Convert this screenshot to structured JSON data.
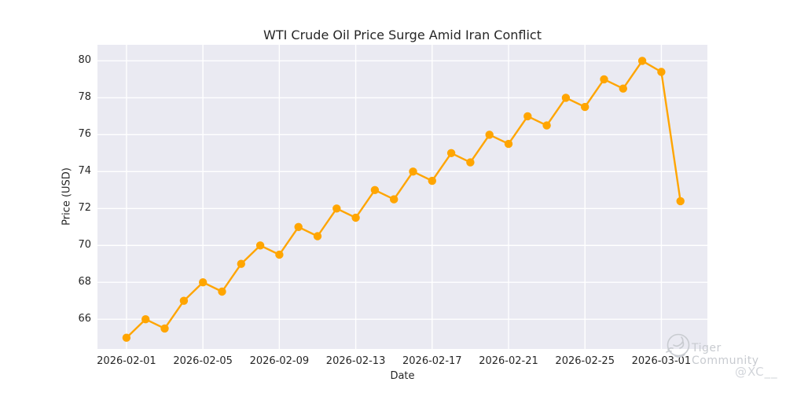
{
  "chart_data": {
    "type": "line",
    "title": "WTI Crude Oil Price Surge Amid Iran Conflict",
    "xlabel": "Date",
    "ylabel": "Price (USD)",
    "x": [
      "2026-02-01",
      "2026-02-02",
      "2026-02-03",
      "2026-02-04",
      "2026-02-05",
      "2026-02-06",
      "2026-02-07",
      "2026-02-08",
      "2026-02-09",
      "2026-02-10",
      "2026-02-11",
      "2026-02-12",
      "2026-02-13",
      "2026-02-14",
      "2026-02-15",
      "2026-02-16",
      "2026-02-17",
      "2026-02-18",
      "2026-02-19",
      "2026-02-20",
      "2026-02-21",
      "2026-02-22",
      "2026-02-23",
      "2026-02-24",
      "2026-02-25",
      "2026-02-26",
      "2026-02-27",
      "2026-02-28",
      "2026-03-01",
      "2026-03-02"
    ],
    "values": [
      65.0,
      66.0,
      65.5,
      67.0,
      68.0,
      67.5,
      69.0,
      70.0,
      69.5,
      71.0,
      70.5,
      72.0,
      71.5,
      73.0,
      72.5,
      74.0,
      73.5,
      75.0,
      74.5,
      76.0,
      75.5,
      77.0,
      76.5,
      78.0,
      77.5,
      79.0,
      78.5,
      80.0,
      79.4,
      72.4
    ],
    "x_tick_labels": [
      "2026-02-01",
      "2026-02-05",
      "2026-02-09",
      "2026-02-13",
      "2026-02-17",
      "2026-02-21",
      "2026-02-25",
      "2026-03-01"
    ],
    "y_tick_values": [
      66,
      68,
      70,
      72,
      74,
      76,
      78,
      80
    ],
    "ylim": [
      64.39,
      80.87
    ],
    "xlim_index": [
      -1.52,
      30.41
    ],
    "grid": true,
    "legend": "none",
    "line_color": "#FFA500",
    "marker": "circle",
    "plot_background": "#EAEAF2",
    "grid_color": "#FFFFFF",
    "text_color": "#262626"
  },
  "watermark": {
    "logo_icon": "tiger-community-logo",
    "community": "Tiger Community",
    "handle": "@XC__"
  }
}
